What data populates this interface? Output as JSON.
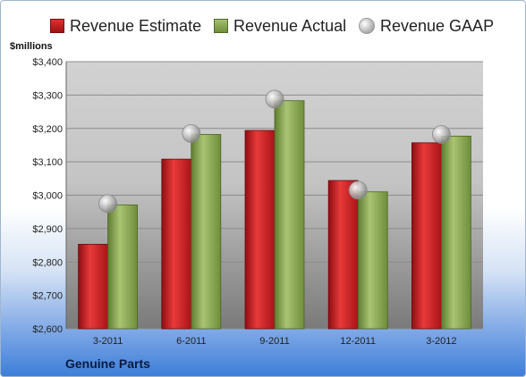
{
  "chart_data": {
    "type": "bar",
    "title": "",
    "units_label": "$millions",
    "company": "Genuine Parts",
    "categories": [
      "3-2011",
      "6-2011",
      "9-2011",
      "12-2011",
      "3-2012"
    ],
    "series": [
      {
        "name": "Revenue Estimate",
        "kind": "bar",
        "color": "#c8191e",
        "values": [
          2853,
          3108,
          3194,
          3044,
          3157
        ]
      },
      {
        "name": "Revenue Actual",
        "kind": "bar",
        "color": "#8aa855",
        "values": [
          2971,
          3182,
          3283,
          3010,
          3177
        ]
      },
      {
        "name": "Revenue GAAP",
        "kind": "marker",
        "color": "#b8b8b8",
        "values": [
          2975,
          3185,
          3288,
          3015,
          3182
        ]
      }
    ],
    "ylim": [
      2600,
      3400
    ],
    "yticks": [
      "$2,600",
      "$2,700",
      "$2,800",
      "$2,900",
      "$3,000",
      "$3,100",
      "$3,200",
      "$3,300",
      "$3,400"
    ],
    "ytick_values": [
      2600,
      2700,
      2800,
      2900,
      3000,
      3100,
      3200,
      3300,
      3400
    ],
    "grid": true,
    "legend_position": "top"
  }
}
